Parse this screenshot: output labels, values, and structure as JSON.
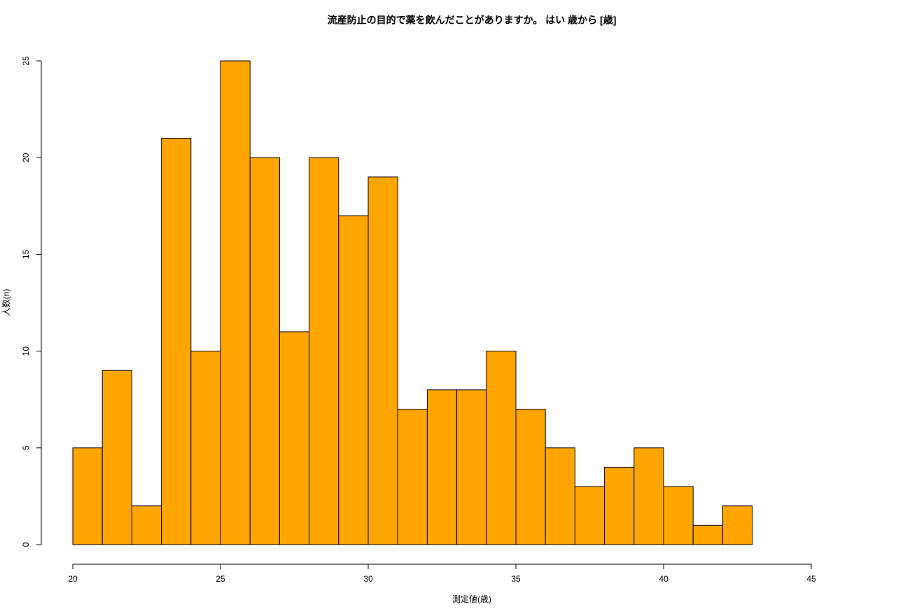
{
  "chart_data": {
    "type": "histogram",
    "title": "流産防止の目的で薬を飲んだことがありますか。 はい 歳から [歳]",
    "x_label": "測定値(歳)",
    "y_label": "人数(n)",
    "bins": [
      20,
      21,
      22,
      23,
      24,
      25,
      26,
      27,
      28,
      29,
      30,
      31,
      32,
      33,
      34,
      35,
      36,
      37,
      38,
      39,
      40,
      41,
      42,
      43
    ],
    "values": [
      5,
      9,
      2,
      21,
      10,
      25,
      20,
      11,
      20,
      17,
      19,
      7,
      8,
      8,
      10,
      7,
      5,
      3,
      4,
      5,
      3,
      1,
      2
    ],
    "color": "#ffa500",
    "xlim": [
      20,
      45
    ],
    "xticks": [
      20,
      25,
      30,
      35,
      40,
      45
    ],
    "ylim": [
      0,
      25
    ],
    "yticks": [
      0,
      5,
      10,
      15,
      20,
      25
    ]
  }
}
